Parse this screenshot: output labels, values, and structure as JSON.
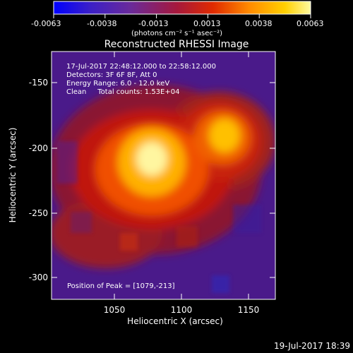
{
  "colorbar": {
    "tick_labels": [
      "-0.0063",
      "-0.0038",
      "-0.0013",
      "0.0013",
      "0.0038",
      "0.0063"
    ],
    "unit_label": "(photons cm⁻² s⁻¹ asec⁻²)",
    "colors": [
      "#0000ff",
      "#3a1fc8",
      "#6a2a9a",
      "#a6183c",
      "#e02a00",
      "#ff8a00",
      "#ffd000",
      "#fffaa0"
    ]
  },
  "plot": {
    "title": "Reconstructed RHESSI Image",
    "xlabel": "Heliocentric X (arcsec)",
    "ylabel": "Heliocentric Y (arcsec)",
    "xticks": [
      "1050",
      "1100",
      "1150"
    ],
    "yticks": [
      "-150",
      "-200",
      "-250",
      "-300"
    ],
    "annotations": [
      "17-Jul-2017 22:48:12.000 to 22:58:12.000",
      "Detectors: 3F 6F 8F, Att 0",
      "Energy Range: 6.0 - 12.0 keV",
      "Clean     Total counts: 1.53E+04"
    ],
    "peak_label": "Position of Peak = [1079,-213]"
  },
  "footer": {
    "timestamp": "19-Jul-2017 18:39"
  }
}
